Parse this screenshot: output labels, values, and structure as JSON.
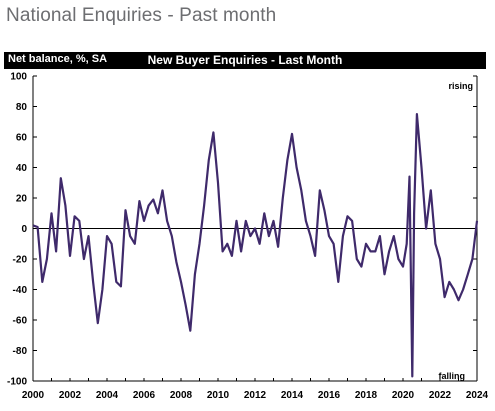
{
  "page": {
    "title": "National Enquiries - Past month"
  },
  "chart_data": {
    "type": "line",
    "title": "New Buyer Enquiries - Last Month",
    "ylabel": "Net balance, %, SA",
    "xlabel": "",
    "ylim": [
      -100,
      100
    ],
    "xlim": [
      2000,
      2024
    ],
    "yticks": [
      -100,
      -80,
      -60,
      -40,
      -20,
      0,
      20,
      40,
      60,
      80,
      100
    ],
    "xticks": [
      "2000",
      "2002",
      "2004",
      "2006",
      "2008",
      "2010",
      "2012",
      "2014",
      "2016",
      "2018",
      "2020",
      "2022",
      "2024"
    ],
    "annotations": {
      "top": "rising",
      "bottom": "falling"
    },
    "grid": false,
    "zero_line": true,
    "line_color": "#3f2a6b",
    "series": [
      {
        "x": [
          2000.0,
          2000.25,
          2000.5,
          2000.75,
          2001.0,
          2001.25,
          2001.5,
          2001.75,
          2002.0,
          2002.25,
          2002.5,
          2002.75,
          2003.0,
          2003.25,
          2003.5,
          2003.75,
          2004.0,
          2004.25,
          2004.5,
          2004.75,
          2005.0,
          2005.25,
          2005.5,
          2005.75,
          2006.0,
          2006.25,
          2006.5,
          2006.75,
          2007.0,
          2007.25,
          2007.5,
          2007.75,
          2008.0,
          2008.25,
          2008.5,
          2008.75,
          2009.0,
          2009.25,
          2009.5,
          2009.75,
          2010.0,
          2010.25,
          2010.5,
          2010.75,
          2011.0,
          2011.25,
          2011.5,
          2011.75,
          2012.0,
          2012.25,
          2012.5,
          2012.75,
          2013.0,
          2013.25,
          2013.5,
          2013.75,
          2014.0,
          2014.25,
          2014.5,
          2014.75,
          2015.0,
          2015.25,
          2015.5,
          2015.75,
          2016.0,
          2016.25,
          2016.5,
          2016.75,
          2017.0,
          2017.25,
          2017.5,
          2017.75,
          2018.0,
          2018.25,
          2018.5,
          2018.75,
          2019.0,
          2019.25,
          2019.5,
          2019.75,
          2020.0,
          2020.2,
          2020.35,
          2020.5,
          2020.6,
          2020.75,
          2021.0,
          2021.25,
          2021.5,
          2021.75,
          2022.0,
          2022.25,
          2022.5,
          2022.75,
          2023.0,
          2023.25,
          2023.5,
          2023.75,
          2024.0
        ],
        "y": [
          2,
          1,
          -35,
          -20,
          10,
          -15,
          33,
          15,
          -18,
          8,
          5,
          -20,
          -5,
          -35,
          -62,
          -40,
          -5,
          -10,
          -35,
          -38,
          12,
          -5,
          -10,
          18,
          5,
          15,
          19,
          10,
          25,
          5,
          -5,
          -22,
          -35,
          -50,
          -67,
          -30,
          -10,
          15,
          45,
          63,
          30,
          -15,
          -10,
          -18,
          5,
          -15,
          5,
          -5,
          0,
          -10,
          10,
          -5,
          5,
          -12,
          20,
          45,
          62,
          40,
          25,
          5,
          -5,
          -18,
          25,
          12,
          -5,
          -10,
          -35,
          -5,
          8,
          5,
          -20,
          -25,
          -10,
          -15,
          -15,
          -5,
          -30,
          -15,
          -5,
          -20,
          -25,
          -10,
          34,
          -97,
          10,
          75,
          40,
          0,
          25,
          -10,
          -20,
          -45,
          -35,
          -40,
          -47,
          -40,
          -30,
          -20,
          5
        ]
      }
    ]
  }
}
